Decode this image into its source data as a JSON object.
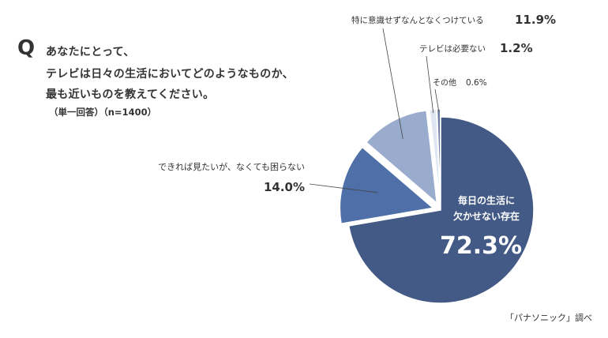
{
  "question": {
    "mark": "Q",
    "lines": [
      "あなたにとって、",
      "テレビは日々の生活においてどのようなものか、",
      "最も近いものを教えてください。"
    ],
    "note_left": "（単一回答）",
    "note_right": "（n=1400）"
  },
  "source": "「パナソニック」調べ",
  "colors": {
    "slice_main": "#445a86",
    "slice_second": "#4f6fa8",
    "slice_third": "#9aaccd",
    "slice_fourth": "#dfe6f1",
    "slice_other": "#6f7f9f",
    "leader": "#444444",
    "edge": "#ffffff"
  },
  "chart_data": {
    "type": "pie",
    "title": "",
    "slices": [
      {
        "label_lines": [
          "毎日の生活に",
          "欠かせない存在"
        ],
        "value": 72.3,
        "value_label": "72.3%",
        "color": "#445a86",
        "exploded": false
      },
      {
        "label_lines": [
          "できれば見たいが、なくても困らない"
        ],
        "value": 14.0,
        "value_label": "14.0%",
        "color": "#4f6fa8",
        "exploded": true
      },
      {
        "label_lines": [
          "特に意識せずなんとなくつけている"
        ],
        "value": 11.9,
        "value_label": "11.9%",
        "color": "#9aaccd",
        "exploded": true
      },
      {
        "label_lines": [
          "テレビは必要ない"
        ],
        "value": 1.2,
        "value_label": "1.2%",
        "color": "#dfe6f1",
        "exploded": true
      },
      {
        "label_lines": [
          "その他"
        ],
        "value": 0.6,
        "value_label": "0.6%",
        "color": "#6f7f9f",
        "exploded": true
      }
    ]
  }
}
